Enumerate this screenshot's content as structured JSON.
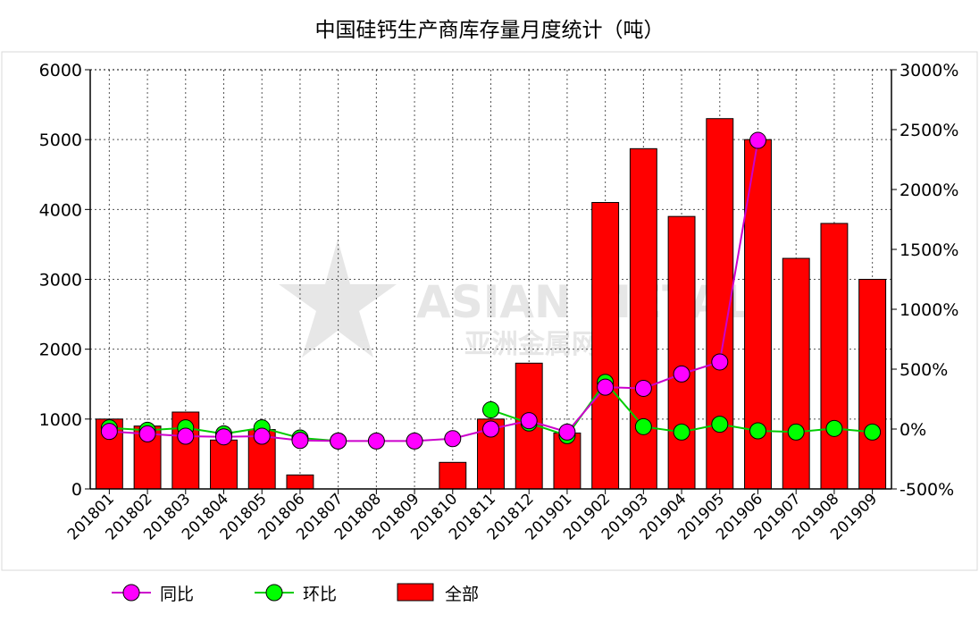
{
  "chart_data": {
    "title": "中国硅钙生产商库存量月度统计（吨）",
    "type": "bar+line",
    "categories": [
      "201801",
      "201802",
      "201803",
      "201804",
      "201805",
      "201806",
      "201807",
      "201808",
      "201809",
      "201810",
      "201811",
      "201812",
      "201901",
      "201902",
      "201903",
      "201904",
      "201905",
      "201906",
      "201907",
      "201908",
      "201909"
    ],
    "y_left": {
      "min": 0,
      "max": 6000,
      "ticks": [
        "0",
        "1000",
        "2000",
        "3000",
        "4000",
        "5000",
        "6000"
      ]
    },
    "y_right": {
      "min": -500,
      "max": 3000,
      "ticks": [
        "-500%",
        "0%",
        "500%",
        "1000%",
        "1500%",
        "2000%",
        "2500%",
        "3000%"
      ]
    },
    "grid": true,
    "legend_position": "bottom",
    "watermark": "ASIAN METAL 亚洲金属网",
    "series": [
      {
        "name": "全部",
        "kind": "bar",
        "axis": "left",
        "color": "#ff0000",
        "values": [
          1000,
          900,
          1100,
          700,
          850,
          200,
          0,
          0,
          0,
          380,
          1000,
          1800,
          800,
          4100,
          4870,
          3900,
          5300,
          5000,
          3300,
          3800,
          3000
        ]
      },
      {
        "name": "同比",
        "kind": "line",
        "axis": "right",
        "color": "#cc00cc",
        "marker_color": "#ff00ff",
        "values": [
          -20,
          -40,
          -60,
          -65,
          -60,
          -95,
          -100,
          -100,
          -100,
          -80,
          0,
          70,
          -25,
          350,
          340,
          460,
          560,
          2410,
          null,
          null,
          null
        ]
      },
      {
        "name": "环比",
        "kind": "line",
        "axis": "right",
        "color": "#00cc00",
        "marker_color": "#00ff00",
        "values": [
          10,
          -10,
          10,
          -40,
          10,
          -75,
          -100,
          null,
          null,
          null,
          160,
          50,
          -55,
          390,
          20,
          -25,
          40,
          -15,
          -25,
          5,
          -25
        ]
      }
    ]
  }
}
